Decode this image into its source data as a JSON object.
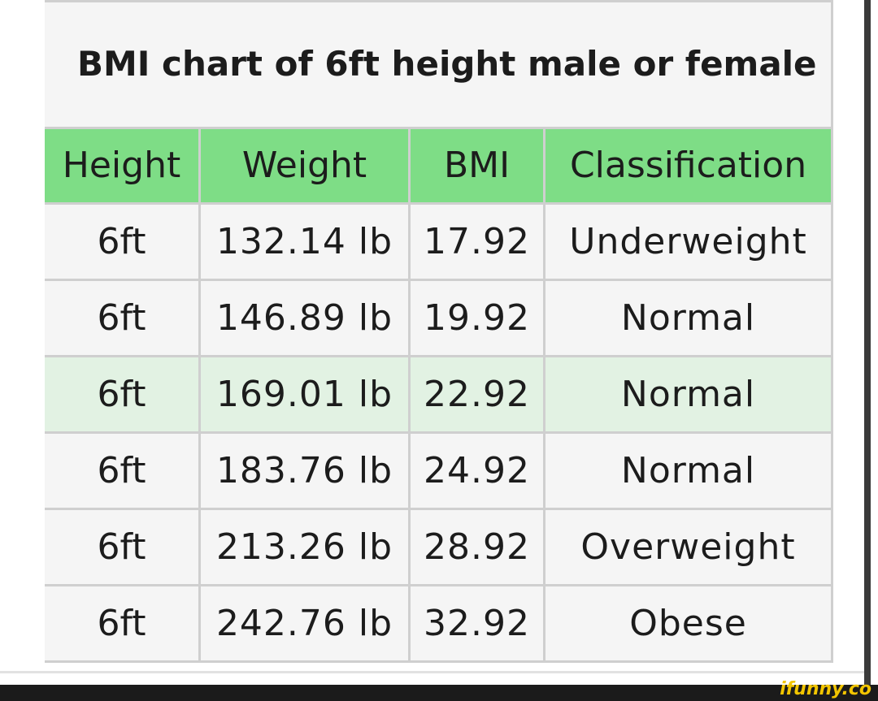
{
  "table": {
    "caption": "BMI chart of 6ft height male or female",
    "headers": [
      "Height",
      "Weight",
      "BMI",
      "Classification"
    ],
    "rows": [
      {
        "height": "6ft",
        "weight": "132.14 lb",
        "bmi": "17.92",
        "classification": "Underweight"
      },
      {
        "height": "6ft",
        "weight": "146.89 lb",
        "bmi": "19.92",
        "classification": "Normal"
      },
      {
        "height": "6ft",
        "weight": "169.01 lb",
        "bmi": "22.92",
        "classification": "Normal"
      },
      {
        "height": "6ft",
        "weight": "183.76 lb",
        "bmi": "24.92",
        "classification": "Normal"
      },
      {
        "height": "6ft",
        "weight": "213.26 lb",
        "bmi": "28.92",
        "classification": "Overweight"
      },
      {
        "height": "6ft",
        "weight": "242.76 lb",
        "bmi": "32.92",
        "classification": "Obese"
      }
    ]
  },
  "colors": {
    "header_bg": "#7edd86",
    "highlight_row_bg": "#e2f2e3",
    "cell_bg": "#f5f5f5"
  },
  "watermark": {
    "text": "ifunny.co"
  }
}
